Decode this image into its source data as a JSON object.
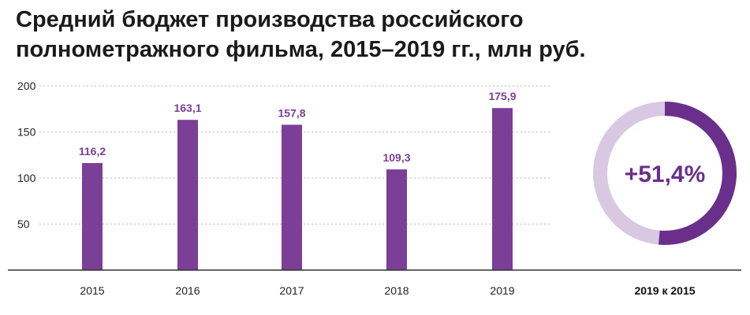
{
  "title_line1": "Средний бюджет производства российского",
  "title_line2": "полнометражного фильма, 2015–2019 гг., млн руб.",
  "colors": {
    "bar": "#7b3f98",
    "label": "#7b3f98",
    "ring_dark": "#6a2f8a",
    "ring_light": "#d8c8e2",
    "grid": "#b8b8b8",
    "axis": "#333333"
  },
  "chart_data": {
    "type": "bar",
    "categories": [
      "2015",
      "2016",
      "2017",
      "2018",
      "2019"
    ],
    "values": [
      116.2,
      163.1,
      157.8,
      109.3,
      175.9
    ],
    "value_labels": [
      "116,2",
      "163,1",
      "157,8",
      "109,3",
      "175,9"
    ],
    "yticks": [
      50,
      100,
      150,
      200
    ],
    "ylim": [
      0,
      200
    ],
    "grid": true,
    "xlabel": "",
    "ylabel": ""
  },
  "comparison": {
    "label": "+51,4%",
    "fraction": 0.514,
    "caption": "2019 к 2015"
  }
}
